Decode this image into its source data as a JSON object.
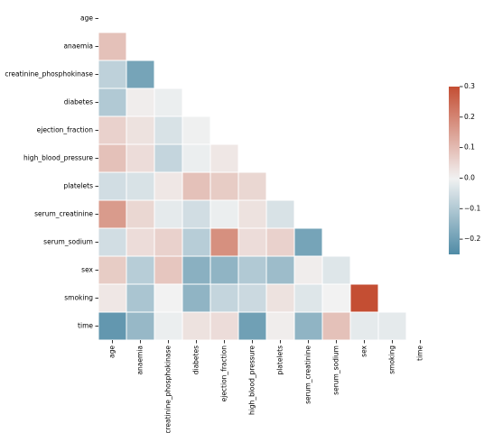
{
  "chart_data": {
    "type": "heatmap",
    "style": "lower-triangle correlation matrix (diagonal and upper triangle masked)",
    "variables": [
      "age",
      "anaemia",
      "creatinine_phosphokinase",
      "diabetes",
      "ejection_fraction",
      "high_blood_pressure",
      "platelets",
      "serum_creatinine",
      "serum_sodium",
      "sex",
      "smoking",
      "time"
    ],
    "values": [
      [
        null,
        null,
        null,
        null,
        null,
        null,
        null,
        null,
        null,
        null,
        null,
        null
      ],
      [
        0.09,
        null,
        null,
        null,
        null,
        null,
        null,
        null,
        null,
        null,
        null,
        null
      ],
      [
        -0.08,
        -0.19,
        null,
        null,
        null,
        null,
        null,
        null,
        null,
        null,
        null,
        null
      ],
      [
        -0.1,
        0.01,
        -0.01,
        null,
        null,
        null,
        null,
        null,
        null,
        null,
        null,
        null
      ],
      [
        0.06,
        0.03,
        -0.04,
        -0.005,
        null,
        null,
        null,
        null,
        null,
        null,
        null,
        null
      ],
      [
        0.09,
        0.04,
        -0.07,
        -0.01,
        0.02,
        null,
        null,
        null,
        null,
        null,
        null,
        null
      ],
      [
        -0.05,
        -0.04,
        0.02,
        0.09,
        0.07,
        0.05,
        null,
        null,
        null,
        null,
        null,
        null
      ],
      [
        0.16,
        0.05,
        -0.02,
        -0.05,
        -0.01,
        0.03,
        -0.04,
        null,
        null,
        null,
        null,
        null
      ],
      [
        -0.05,
        0.04,
        0.06,
        -0.09,
        0.18,
        0.04,
        0.06,
        -0.19,
        null,
        null,
        null,
        null
      ],
      [
        0.07,
        -0.09,
        0.08,
        -0.16,
        -0.15,
        -0.1,
        -0.13,
        0.01,
        -0.03,
        null,
        null,
        null
      ],
      [
        0.02,
        -0.11,
        0.0,
        -0.15,
        -0.07,
        -0.06,
        0.03,
        -0.03,
        0.0,
        0.45,
        null,
        null
      ],
      [
        -0.22,
        -0.14,
        -0.01,
        0.03,
        0.04,
        -0.2,
        0.01,
        -0.15,
        0.09,
        -0.02,
        -0.02,
        null
      ]
    ],
    "colorbar": {
      "min": -0.25,
      "max": 0.3,
      "ticks": [
        "0.3",
        "0.2",
        "0.1",
        "0.0",
        "−0.1",
        "−0.2"
      ],
      "tick_values": [
        0.3,
        0.2,
        0.1,
        0.0,
        -0.1,
        -0.2
      ],
      "colormap": "diverging blue-white-red",
      "negative_color": "#4f8ba6",
      "neutral_color": "#f2f2f2",
      "positive_color": "#c44e33"
    },
    "grid_line_color": "#ffffff"
  }
}
